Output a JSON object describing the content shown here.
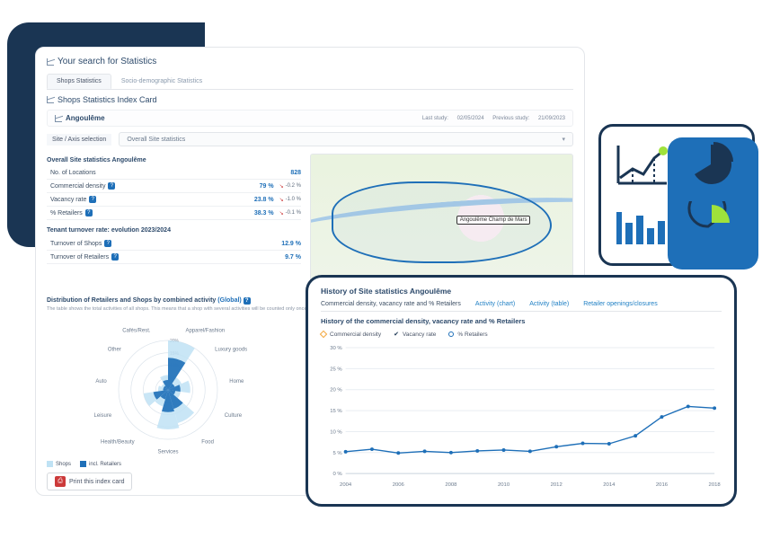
{
  "colors": {
    "dark_navy": "#1a3553",
    "blue": "#1e6fb8",
    "light_blue": "#66a9dd",
    "green_accent": "#9fe23b",
    "red": "#cc3a3a",
    "text_dark": "#2d4a6b",
    "text_mid": "#4a5568",
    "text_light": "#8a95a5",
    "border": "#e3e6ea"
  },
  "page": {
    "title": "Your search for Statistics"
  },
  "tabs": {
    "items": [
      {
        "label": "Shops Statistics",
        "active": true
      },
      {
        "label": "Socio-demographic Statistics",
        "active": false
      }
    ]
  },
  "section": {
    "title": "Shops Statistics Index Card"
  },
  "location": {
    "name": "Angoulême",
    "last_study_label": "Last study:",
    "last_study": "02/05/2024",
    "prev_study_label": "Previous study:",
    "prev_study": "21/09/2023"
  },
  "axis": {
    "label": "Site / Axis selection",
    "selected": "Overall Site statistics"
  },
  "overall": {
    "heading": "Overall Site statistics Angoulême",
    "rows": [
      {
        "label": "No. of Locations",
        "value": "828",
        "delta": null
      },
      {
        "label": "Commercial density",
        "value": "79 %",
        "delta": "-0.2 %",
        "dir": "down"
      },
      {
        "label": "Vacancy rate",
        "value": "23.8 %",
        "delta": "-1.0 %",
        "dir": "down"
      },
      {
        "label": "% Retailers",
        "value": "38.3 %",
        "delta": "-0.1 %",
        "dir": "down"
      }
    ]
  },
  "turnover": {
    "heading": "Tenant turnover rate: evolution 2023/2024",
    "rows": [
      {
        "label": "Turnover of Shops",
        "value": "12.9 %"
      },
      {
        "label": "Turnover of Retailers",
        "value": "9.7 %"
      }
    ]
  },
  "distribution": {
    "title_1": "Distribution of",
    "title_bold1": "Retailers",
    "title_2": "and",
    "title_bold2": "Shops",
    "title_3": "by",
    "title_bold3": "combined",
    "title_4": "activity",
    "scope_label": "Global",
    "subtitle": "The table shows the total activities of all shops. This means that a shop with several activities will be counted only once in this table.",
    "type": "polar-area",
    "category_labels": [
      "Apparel/Fashion",
      "Luxury goods",
      "Home",
      "Culture",
      "Food",
      "Services",
      "Health/Beauty",
      "Leisure",
      "Auto",
      "Other",
      "Cafés/Rest."
    ],
    "series": [
      {
        "name": "Shops",
        "color": "#bfe2f4",
        "values": [
          20,
          6,
          9,
          5,
          14,
          16,
          7,
          10,
          4,
          3,
          6
        ]
      },
      {
        "name": "incl. Retailers",
        "color": "#1e6fb8",
        "values": [
          13,
          3,
          5,
          3,
          8,
          9,
          4,
          6,
          2,
          2,
          4
        ]
      }
    ],
    "rings": [
      5,
      10,
      15,
      20
    ],
    "label_fontsize": 6,
    "background_color": "#ffffff"
  },
  "map": {
    "boundary_color": "#1e6fb8",
    "marker_label": "Angoulême\nChamp de Mars"
  },
  "print": {
    "label": "Print this index card"
  },
  "history": {
    "title": "History of Site statistics Angoulême",
    "tabs": [
      {
        "label": "Commercial density, vacancy rate and % Retailers",
        "active": true
      },
      {
        "label": "Activity (chart)",
        "active": false
      },
      {
        "label": "Activity (table)",
        "active": false
      },
      {
        "label": "Retailer openings/closures",
        "active": false
      }
    ],
    "subtitle": "History of the commercial density, vacancy rate and % Retailers",
    "legend": [
      {
        "marker": "diamond",
        "color": "#f2a63b",
        "label": "Commercial density"
      },
      {
        "marker": "check",
        "color": "#1a3553",
        "label": "Vacancy rate"
      },
      {
        "marker": "circle",
        "color": "#1e6fb8",
        "label": "% Retailers"
      }
    ],
    "chart": {
      "type": "line",
      "xlim": [
        2004,
        2018
      ],
      "x_ticks": [
        2004,
        2006,
        2008,
        2010,
        2012,
        2014,
        2016,
        2018
      ],
      "ylim": [
        0,
        30
      ],
      "y_ticks": [
        0,
        5,
        10,
        15,
        20,
        25,
        30
      ],
      "y_unit": "%",
      "grid_color": "#e9edf2",
      "axis_color": "#cdd5df",
      "label_fontsize": 6,
      "series_blue": {
        "color": "#1e6fb8",
        "x": [
          2004,
          2005,
          2006,
          2007,
          2008,
          2009,
          2010,
          2011,
          2012,
          2013,
          2014,
          2015,
          2016,
          2017,
          2018
        ],
        "y": [
          5.2,
          5.8,
          4.9,
          5.3,
          5.0,
          5.4,
          5.6,
          5.3,
          6.4,
          7.2,
          7.1,
          9.0,
          13.5,
          16.0,
          15.6
        ]
      }
    }
  },
  "icon_panel": {
    "line_chart_color": "#1a3553",
    "pie_color": "#1a3553",
    "bar_color": "#1e6fb8",
    "accent": "#9fe23b"
  }
}
